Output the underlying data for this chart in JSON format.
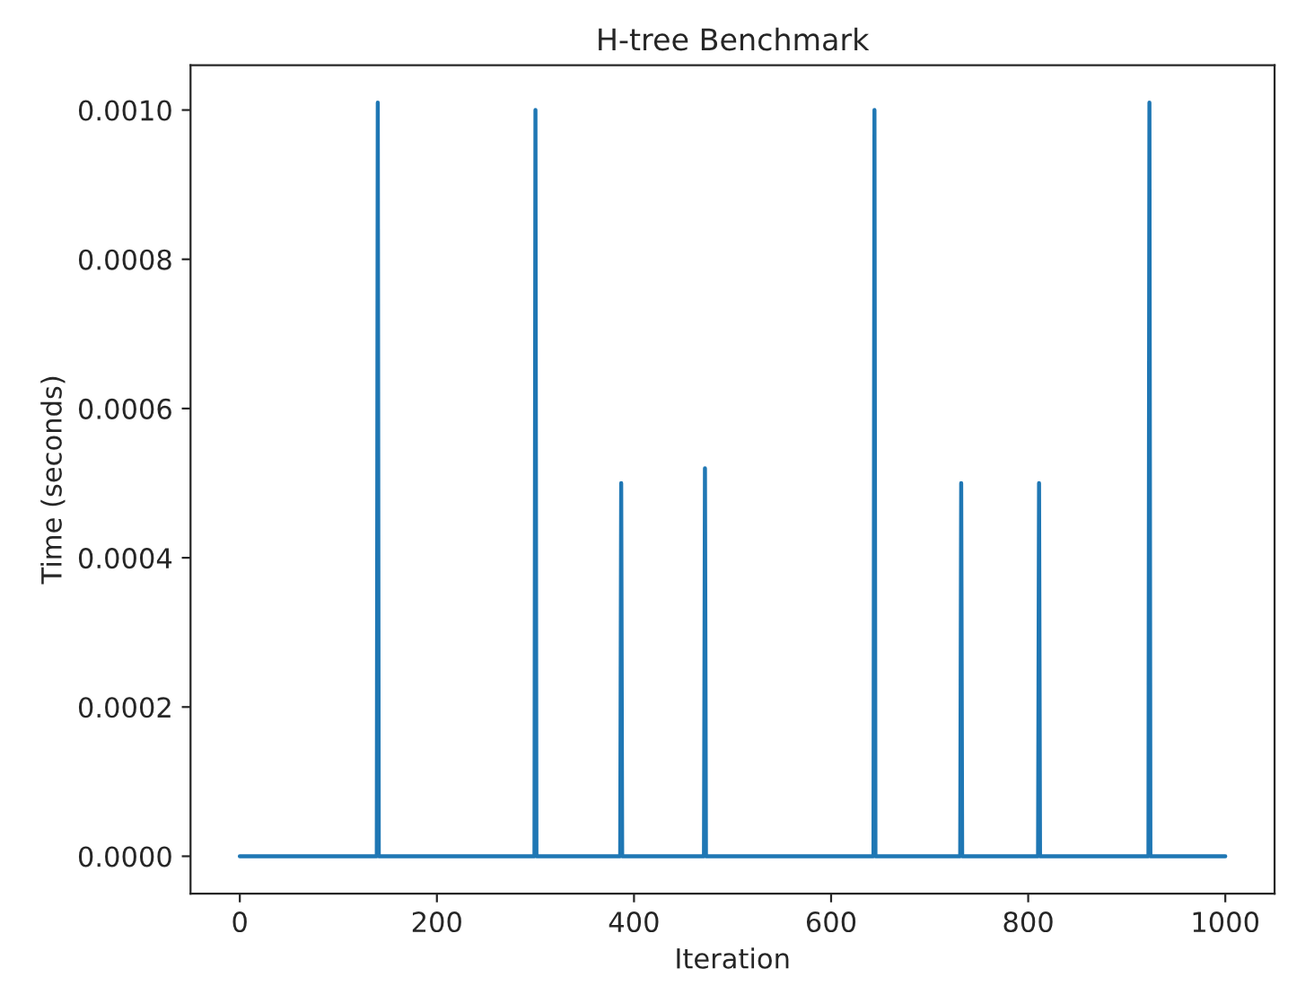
{
  "chart_data": {
    "type": "line",
    "title": "H-tree Benchmark",
    "xlabel": "Iteration",
    "ylabel": "Time (seconds)",
    "x": [
      0,
      139,
      140,
      141,
      299,
      300,
      301,
      386,
      387,
      388,
      471,
      472,
      473,
      643,
      644,
      645,
      731,
      732,
      733,
      810,
      811,
      812,
      922,
      923,
      924,
      1000
    ],
    "series": [
      {
        "color": "#1f77b4",
        "values": [
          0,
          0,
          0.00101,
          0,
          0,
          0.001,
          0,
          0,
          0.0005,
          0,
          0,
          0.00052,
          0,
          0,
          0.001,
          0,
          0,
          0.0005,
          0,
          0,
          0.0005,
          0,
          0,
          0.00101,
          0,
          0
        ]
      }
    ],
    "xlim": [
      -50,
      1050
    ],
    "xticks": [
      0,
      200,
      400,
      600,
      800,
      1000
    ],
    "ylim": [
      -5e-05,
      0.00106
    ],
    "yticks": [
      {
        "value": 0,
        "label": "0.0000"
      },
      {
        "value": 0.0002,
        "label": "0.0002"
      },
      {
        "value": 0.0004,
        "label": "0.0004"
      },
      {
        "value": 0.0006,
        "label": "0.0006"
      },
      {
        "value": 0.0008,
        "label": "0.0008"
      },
      {
        "value": 0.001,
        "label": "0.0010"
      }
    ],
    "grid": false,
    "legend": false
  }
}
